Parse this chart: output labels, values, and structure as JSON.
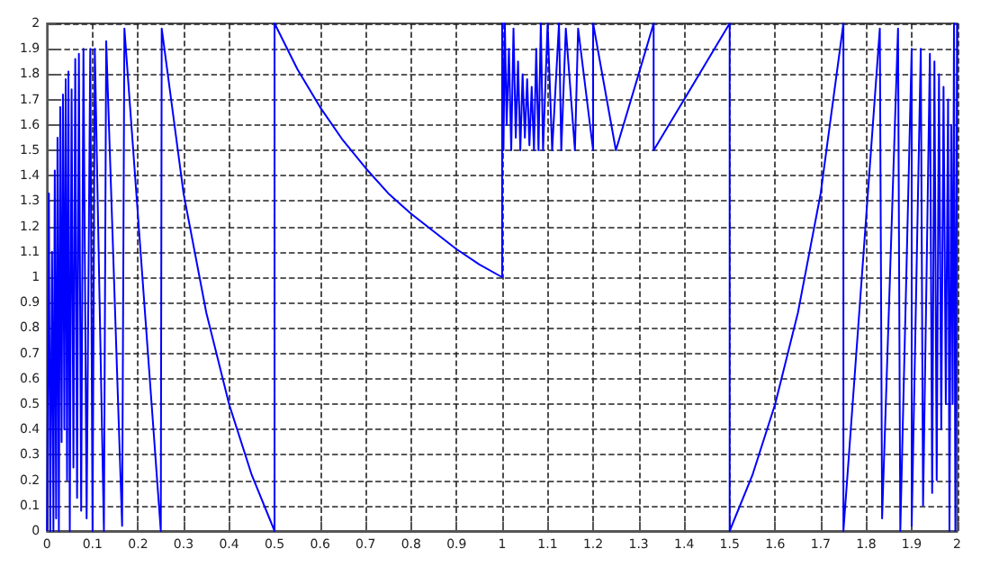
{
  "chart_data": {
    "type": "line",
    "color": "#0000ff",
    "x": [
      0,
      0.004,
      0.007,
      0.011,
      0.014,
      0.017,
      0.02,
      0.023,
      0.026,
      0.029,
      0.032,
      0.035,
      0.038,
      0.041,
      0.044,
      0.047,
      0.05,
      0.054,
      0.058,
      0.062,
      0.066,
      0.07,
      0.075,
      0.08,
      0.087,
      0.095,
      0.1,
      0.105,
      0.125,
      0.13,
      0.165,
      0.17,
      0.25,
      0.252,
      0.3,
      0.35,
      0.4,
      0.45,
      0.5,
      0.5,
      0.55,
      0.6,
      0.65,
      0.7,
      0.75,
      0.8,
      0.85,
      0.9,
      0.95,
      1,
      1,
      1.003,
      1.006,
      1.01,
      1.015,
      1.02,
      1.025,
      1.03,
      1.035,
      1.04,
      1.045,
      1.05,
      1.055,
      1.06,
      1.065,
      1.07,
      1.075,
      1.08,
      1.085,
      1.09,
      1.1,
      1.11,
      1.125,
      1.13,
      1.14,
      1.16,
      1.167,
      1.2,
      1.2,
      1.25,
      1.3,
      1.333,
      1.333,
      1.4,
      1.45,
      1.5,
      1.5,
      1.55,
      1.6,
      1.65,
      1.7,
      1.75,
      1.75,
      1.83,
      1.835,
      1.87,
      1.875,
      1.9,
      1.9,
      1.92,
      1.925,
      1.94,
      1.945,
      1.95,
      1.955,
      1.96,
      1.965,
      1.97,
      1.975,
      1.98,
      1.983,
      1.987,
      1.99,
      1.993,
      1.996,
      2
    ],
    "values": [
      0,
      1.33,
      0,
      1.1,
      0,
      1.42,
      0.05,
      1.55,
      0,
      1.67,
      0.35,
      1.72,
      0.4,
      1.78,
      0.2,
      1.81,
      0,
      1.74,
      0.25,
      1.86,
      0.13,
      1.88,
      0.08,
      1.9,
      0.05,
      1.9,
      0,
      1.9,
      0,
      1.93,
      0.02,
      1.98,
      0,
      1.98,
      1.33,
      0.86,
      0.5,
      0.22,
      0,
      2,
      1.82,
      1.67,
      1.54,
      1.43,
      1.33,
      1.25,
      1.18,
      1.11,
      1.05,
      1,
      2,
      1.5,
      2,
      1.6,
      1.9,
      1.5,
      1.98,
      1.55,
      1.85,
      1.5,
      1.8,
      1.55,
      1.78,
      1.52,
      1.75,
      1.5,
      1.9,
      1.5,
      2,
      1.5,
      2,
      1.5,
      2,
      1.5,
      1.98,
      1.5,
      1.98,
      1.5,
      2,
      1.5,
      1.8,
      2,
      1.5,
      1.7,
      1.85,
      2,
      0,
      0.22,
      0.5,
      0.86,
      1.33,
      2,
      0,
      1.98,
      0.05,
      1.98,
      0,
      1.9,
      0.02,
      1.9,
      0.1,
      1.88,
      0.15,
      1.85,
      0.2,
      1.8,
      0.4,
      1.75,
      0.5,
      1.7,
      0,
      1.6,
      0.5,
      2,
      0,
      2
    ],
    "xlim": [
      0,
      2
    ],
    "ylim": [
      0,
      2
    ],
    "xticks": [
      0,
      0.1,
      0.2,
      0.3,
      0.4,
      0.5,
      0.6,
      0.7,
      0.8,
      0.9,
      1,
      1.1,
      1.2,
      1.3,
      1.4,
      1.5,
      1.6,
      1.7,
      1.8,
      1.9,
      2
    ],
    "yticks": [
      0,
      0.1,
      0.2,
      0.3,
      0.4,
      0.5,
      0.6,
      0.7,
      0.8,
      0.9,
      1,
      1.1,
      1.2,
      1.3,
      1.4,
      1.5,
      1.6,
      1.7,
      1.8,
      1.9,
      2
    ],
    "grid": true,
    "line_style": "solid",
    "marker": "none"
  }
}
